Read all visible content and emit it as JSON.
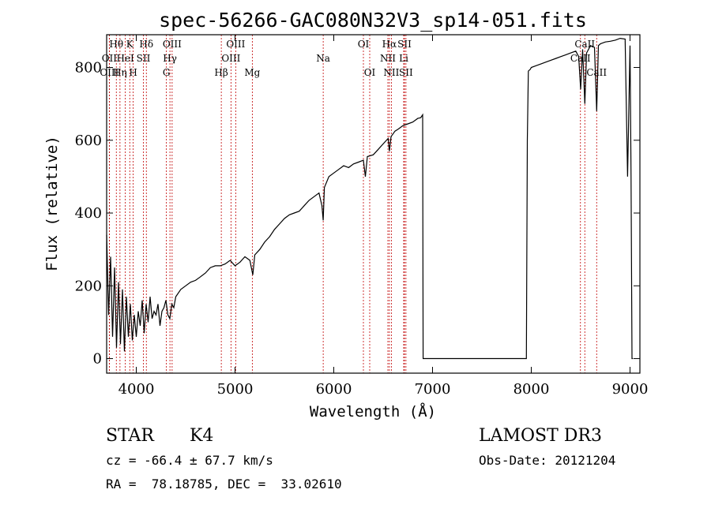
{
  "chart_data": {
    "type": "line",
    "title": "spec-56266-GAC080N32V3_sp14-051.fits",
    "xlabel": "Wavelength (Å)",
    "ylabel": "Flux (relative)",
    "xlim": [
      3700,
      9100
    ],
    "ylim": [
      -40,
      890
    ],
    "xticks": [
      4000,
      5000,
      6000,
      7000,
      8000,
      9000
    ],
    "yticks": [
      0,
      200,
      400,
      600,
      800
    ],
    "series": [
      {
        "name": "spectrum",
        "x": [
          3700,
          3720,
          3740,
          3760,
          3780,
          3800,
          3820,
          3840,
          3860,
          3880,
          3900,
          3920,
          3940,
          3960,
          3980,
          4000,
          4020,
          4040,
          4060,
          4080,
          4100,
          4120,
          4140,
          4160,
          4180,
          4200,
          4220,
          4240,
          4260,
          4280,
          4300,
          4320,
          4340,
          4360,
          4380,
          4400,
          4450,
          4500,
          4550,
          4600,
          4650,
          4700,
          4750,
          4800,
          4850,
          4900,
          4950,
          5000,
          5050,
          5100,
          5150,
          5180,
          5200,
          5250,
          5300,
          5350,
          5400,
          5450,
          5500,
          5550,
          5600,
          5650,
          5700,
          5750,
          5800,
          5850,
          5880,
          5893,
          5905,
          5950,
          6000,
          6050,
          6100,
          6150,
          6200,
          6250,
          6300,
          6320,
          6340,
          6400,
          6450,
          6500,
          6550,
          6563,
          6580,
          6620,
          6650,
          6700,
          6750,
          6800,
          6850,
          6880,
          6900,
          6905,
          6920,
          6930,
          7000,
          7200,
          7500,
          7800,
          7950,
          7960,
          7970,
          7990,
          8000,
          8050,
          8100,
          8150,
          8200,
          8250,
          8300,
          8350,
          8400,
          8450,
          8480,
          8500,
          8520,
          8542,
          8560,
          8600,
          8640,
          8662,
          8680,
          8700,
          8750,
          8800,
          8850,
          8900,
          8950,
          8975,
          9000,
          9010,
          9020,
          9030
        ],
        "y": [
          340,
          120,
          280,
          60,
          250,
          30,
          210,
          40,
          190,
          20,
          170,
          60,
          150,
          50,
          120,
          60,
          130,
          90,
          160,
          70,
          150,
          100,
          170,
          110,
          130,
          120,
          150,
          90,
          130,
          140,
          160,
          120,
          110,
          150,
          140,
          170,
          190,
          200,
          210,
          215,
          225,
          235,
          250,
          255,
          255,
          260,
          270,
          255,
          265,
          280,
          270,
          230,
          285,
          300,
          320,
          335,
          355,
          370,
          385,
          395,
          400,
          405,
          420,
          435,
          445,
          455,
          420,
          380,
          470,
          500,
          510,
          520,
          530,
          525,
          535,
          540,
          545,
          500,
          555,
          560,
          575,
          590,
          605,
          570,
          610,
          625,
          630,
          640,
          645,
          650,
          660,
          662,
          670,
          0,
          0,
          0,
          0,
          0,
          0,
          0,
          0,
          600,
          790,
          795,
          800,
          805,
          810,
          815,
          820,
          825,
          830,
          835,
          840,
          845,
          830,
          740,
          850,
          700,
          840,
          860,
          855,
          680,
          860,
          865,
          870,
          872,
          875,
          880,
          878,
          500,
          860,
          500,
          0,
          0
        ]
      }
    ],
    "spectral_lines": [
      {
        "label": "Hθ",
        "wavelength": 3798,
        "row": 1
      },
      {
        "label": "OII",
        "wavelength": 3727,
        "row": 2
      },
      {
        "label": "Hη",
        "wavelength": 3835,
        "row": 3
      },
      {
        "label": "OIII",
        "wavelength": 3727,
        "row": 3
      },
      {
        "label": "HeI",
        "wavelength": 3889,
        "row": 2
      },
      {
        "label": "K",
        "wavelength": 3934,
        "row": 1
      },
      {
        "label": "H",
        "wavelength": 3969,
        "row": 3
      },
      {
        "label": "SII",
        "wavelength": 4072,
        "row": 2
      },
      {
        "label": "Hδ",
        "wavelength": 4102,
        "row": 1
      },
      {
        "label": "OIII",
        "wavelength": 4363,
        "row": 1
      },
      {
        "label": "Hγ",
        "wavelength": 4341,
        "row": 2
      },
      {
        "label": "G",
        "wavelength": 4305,
        "row": 3
      },
      {
        "label": "Hβ",
        "wavelength": 4861,
        "row": 3
      },
      {
        "label": "OIII",
        "wavelength": 5007,
        "row": 1
      },
      {
        "label": "OIII",
        "wavelength": 4959,
        "row": 2
      },
      {
        "label": "Mg",
        "wavelength": 5175,
        "row": 3
      },
      {
        "label": "Na",
        "wavelength": 5893,
        "row": 2
      },
      {
        "label": "OI",
        "wavelength": 6300,
        "row": 1
      },
      {
        "label": "OI",
        "wavelength": 6364,
        "row": 3
      },
      {
        "label": "Hα",
        "wavelength": 6563,
        "row": 1
      },
      {
        "label": "NII",
        "wavelength": 6548,
        "row": 2
      },
      {
        "label": "NII",
        "wavelength": 6583,
        "row": 3
      },
      {
        "label": "SII",
        "wavelength": 6716,
        "row": 1
      },
      {
        "label": "Li",
        "wavelength": 6708,
        "row": 2
      },
      {
        "label": "SII",
        "wavelength": 6731,
        "row": 3
      },
      {
        "label": "CaII",
        "wavelength": 8542,
        "row": 1
      },
      {
        "label": "CaII",
        "wavelength": 8498,
        "row": 2
      },
      {
        "label": "CaII",
        "wavelength": 8662,
        "row": 3
      }
    ]
  },
  "info": {
    "object_class": "STAR",
    "subclass": "K4",
    "survey": "LAMOST DR3",
    "cz": "cz = -66.4 ± 67.7 km/s",
    "obs_date": "Obs-Date: 20121204",
    "coords": "RA =  78.18785, DEC =  33.02610"
  },
  "colors": {
    "spectrum": "#000000",
    "line_markers": "#c00000",
    "axes": "#000000"
  }
}
